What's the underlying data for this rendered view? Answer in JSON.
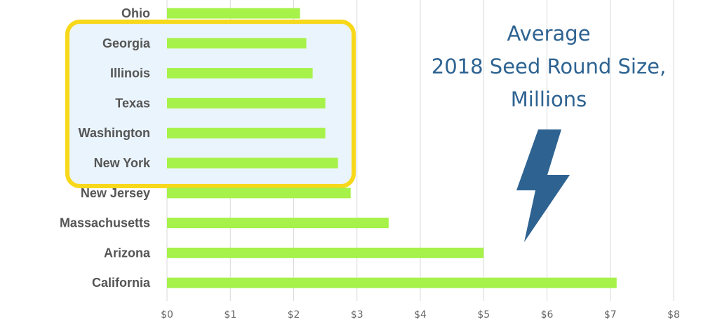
{
  "chart_data": {
    "type": "bar",
    "orientation": "horizontal",
    "title_lines": [
      "Average",
      "2018 Seed Round Size,",
      "Millions"
    ],
    "categories": [
      "Ohio",
      "Georgia",
      "Illinois",
      "Texas",
      "Washington",
      "New York",
      "New Jersey",
      "Massachusetts",
      "Arizona",
      "California"
    ],
    "values": [
      2.1,
      2.2,
      2.3,
      2.5,
      2.5,
      2.7,
      2.9,
      3.5,
      5.0,
      7.1
    ],
    "xlim": [
      0,
      8
    ],
    "x_ticks": [
      "$0",
      "$1",
      "$2",
      "$3",
      "$4",
      "$5",
      "$6",
      "$7",
      "$8"
    ],
    "grid": "vertical",
    "highlighted_categories": [
      "Georgia",
      "Illinois",
      "Texas",
      "Washington",
      "New York"
    ],
    "colors": {
      "bar": "#a6f24a",
      "highlight_border": "#f7d81a",
      "highlight_fill": "#eaf4fc",
      "title": "#2e6391",
      "lightning": "#2e6391"
    },
    "decoration_icon": "lightning-bolt-icon"
  }
}
